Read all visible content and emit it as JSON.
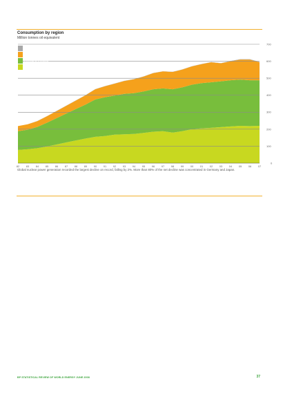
{
  "header": {
    "title": "Consumption by region",
    "subtitle": "Million tonnes oil equivalent"
  },
  "caption": "Global nuclear power generation recorded the largest decline on record, falling by 2%. More than 80% of the net decline was concentrated in Germany and Japan.",
  "footer": {
    "publication": "BP STATISTICAL REVIEW OF WORLD ENERGY JUNE 2008",
    "page": "37"
  },
  "colors": {
    "rest_of_world": "#a8a8a8",
    "asia_pacific": "#f5a11c",
    "europe_eurasia": "#78be3c",
    "north_america": "#c8d820"
  },
  "chart_data": {
    "type": "area",
    "stacked": true,
    "title": "Consumption by region",
    "ylabel": "Million tonnes oil equivalent",
    "ylim": [
      0,
      700
    ],
    "yticks": [
      100,
      200,
      300,
      400,
      500,
      600,
      700
    ],
    "x": [
      "82",
      "83",
      "84",
      "85",
      "86",
      "87",
      "88",
      "89",
      "90",
      "91",
      "92",
      "93",
      "94",
      "95",
      "96",
      "97",
      "98",
      "99",
      "00",
      "01",
      "02",
      "03",
      "04",
      "05",
      "06",
      "07"
    ],
    "x_ticks": [
      "82",
      "83",
      "84",
      "85",
      "86",
      "87",
      "88",
      "89",
      "90",
      "91",
      "92",
      "93",
      "94",
      "95",
      "96",
      "97",
      "98",
      "99",
      "00",
      "01",
      "02",
      "03",
      "04",
      "05",
      "06",
      "07"
    ],
    "grid": true,
    "legend_position": "top-left",
    "series": [
      {
        "name": "North America",
        "color": "#c8d820",
        "values": [
          78,
          82,
          88,
          98,
          110,
          122,
          134,
          145,
          155,
          160,
          168,
          170,
          172,
          178,
          185,
          188,
          180,
          188,
          200,
          205,
          208,
          212,
          216,
          220,
          218,
          220
        ]
      },
      {
        "name": "Europe & Eurasia",
        "color": "#78be3c",
        "values": [
          110,
          115,
          125,
          140,
          155,
          170,
          185,
          200,
          220,
          228,
          230,
          238,
          240,
          244,
          250,
          252,
          255,
          258,
          262,
          266,
          268,
          270,
          272,
          272,
          270,
          268
        ]
      },
      {
        "name": "Asia Pacific",
        "color": "#f5a11c",
        "values": [
          30,
          32,
          34,
          38,
          42,
          46,
          50,
          55,
          60,
          65,
          70,
          76,
          82,
          88,
          95,
          100,
          102,
          105,
          108,
          112,
          118,
          106,
          112,
          118,
          122,
          106
        ]
      },
      {
        "name": "Rest of World",
        "color": "#a8a8a8",
        "values": [
          0,
          0,
          1,
          1,
          1,
          1,
          1,
          1,
          1,
          1,
          1,
          1,
          1,
          1,
          1,
          1,
          1,
          1,
          1,
          1,
          1,
          1,
          2,
          2,
          2,
          2
        ]
      }
    ]
  }
}
